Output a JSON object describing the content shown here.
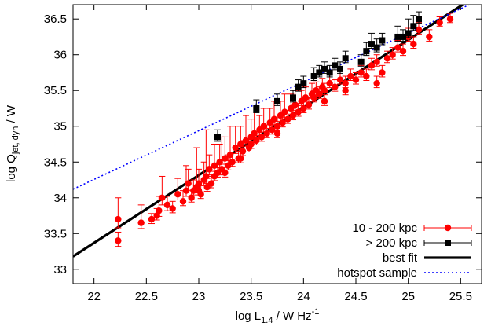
{
  "chart_data": {
    "type": "scatter",
    "xlabel": {
      "main": "log L",
      "sub": "1.4",
      "rest": " / W Hz",
      "sup": "-1"
    },
    "ylabel": {
      "main": "log Q",
      "sub": "jet, dyn",
      "rest": " / W"
    },
    "xlim": [
      21.8,
      25.7
    ],
    "ylim": [
      32.8,
      36.7
    ],
    "xticks": [
      22,
      22.5,
      23,
      23.5,
      24,
      24.5,
      25,
      25.5
    ],
    "xtick_labels": [
      "22",
      "22.5",
      "23",
      "23.5",
      "24",
      "24.5",
      "25",
      "25.5"
    ],
    "yticks": [
      33,
      33.5,
      34,
      34.5,
      35,
      35.5,
      36,
      36.5
    ],
    "ytick_labels": [
      "33",
      "33.5",
      "34",
      "34.5",
      "35",
      "35.5",
      "36",
      "36.5"
    ],
    "grid": false,
    "legend_position": "bottom-right",
    "colors": {
      "red": "#ff0000",
      "black": "#000000",
      "blue": "#0000ff"
    },
    "series": [
      {
        "name": "10 - 200 kpc",
        "marker": "circle",
        "color": "#ff0000",
        "points": [
          [
            22.23,
            33.7,
            0.3,
            0.12
          ],
          [
            22.23,
            33.4,
            0.12,
            0.08
          ],
          [
            22.45,
            33.65,
            0.25,
            0.08
          ],
          [
            22.55,
            33.7,
            0.08,
            0.06
          ],
          [
            22.62,
            33.82,
            0.2,
            0.08
          ],
          [
            22.65,
            34.0,
            0.3,
            0.1
          ],
          [
            22.7,
            33.9,
            0.12,
            0.08
          ],
          [
            22.75,
            33.85,
            0.1,
            0.06
          ],
          [
            22.8,
            34.05,
            0.22,
            0.08
          ],
          [
            22.85,
            33.95,
            0.15,
            0.06
          ],
          [
            22.88,
            34.1,
            0.35,
            0.08
          ],
          [
            22.9,
            34.2,
            0.2,
            0.08
          ],
          [
            22.93,
            34.0,
            0.1,
            0.06
          ],
          [
            22.95,
            34.1,
            0.15,
            0.06
          ],
          [
            22.98,
            34.15,
            0.55,
            0.08
          ],
          [
            23.0,
            34.2,
            0.2,
            0.08
          ],
          [
            23.02,
            34.05,
            0.12,
            0.06
          ],
          [
            23.05,
            34.25,
            0.25,
            0.08
          ],
          [
            23.07,
            34.3,
            0.65,
            0.1
          ],
          [
            23.08,
            34.15,
            0.12,
            0.06
          ],
          [
            23.1,
            34.4,
            0.2,
            0.08
          ],
          [
            23.12,
            34.2,
            0.1,
            0.06
          ],
          [
            23.15,
            34.45,
            0.3,
            0.08
          ],
          [
            23.15,
            34.3,
            0.15,
            0.06
          ],
          [
            23.18,
            34.35,
            0.12,
            0.06
          ],
          [
            23.2,
            34.5,
            0.25,
            0.08
          ],
          [
            23.22,
            34.4,
            0.45,
            0.08
          ],
          [
            23.25,
            34.55,
            0.3,
            0.08
          ],
          [
            23.25,
            34.35,
            0.12,
            0.06
          ],
          [
            23.28,
            34.45,
            0.15,
            0.06
          ],
          [
            23.3,
            34.6,
            0.4,
            0.08
          ],
          [
            23.32,
            34.5,
            0.12,
            0.06
          ],
          [
            23.35,
            34.7,
            0.3,
            0.08
          ],
          [
            23.38,
            34.55,
            0.1,
            0.06
          ],
          [
            23.4,
            34.75,
            0.25,
            0.08
          ],
          [
            23.42,
            34.65,
            0.15,
            0.06
          ],
          [
            23.45,
            34.8,
            0.35,
            0.08
          ],
          [
            23.48,
            34.7,
            0.12,
            0.06
          ],
          [
            23.5,
            34.85,
            0.25,
            0.08
          ],
          [
            23.5,
            34.75,
            0.1,
            0.06
          ],
          [
            23.53,
            34.9,
            0.3,
            0.08
          ],
          [
            23.55,
            34.8,
            0.12,
            0.06
          ],
          [
            23.58,
            34.95,
            0.2,
            0.08
          ],
          [
            23.6,
            34.85,
            0.15,
            0.06
          ],
          [
            23.62,
            35.0,
            0.25,
            0.08
          ],
          [
            23.65,
            34.9,
            0.12,
            0.06
          ],
          [
            23.68,
            35.05,
            0.2,
            0.08
          ],
          [
            23.7,
            34.95,
            0.1,
            0.06
          ],
          [
            23.72,
            35.1,
            0.25,
            0.08
          ],
          [
            23.75,
            35.0,
            0.12,
            0.06
          ],
          [
            23.78,
            35.15,
            0.2,
            0.08
          ],
          [
            23.8,
            35.05,
            0.15,
            0.06
          ],
          [
            23.82,
            35.2,
            0.25,
            0.08
          ],
          [
            23.85,
            35.1,
            0.12,
            0.06
          ],
          [
            23.88,
            35.25,
            0.2,
            0.08
          ],
          [
            23.9,
            35.15,
            0.1,
            0.06
          ],
          [
            23.92,
            35.3,
            0.2,
            0.08
          ],
          [
            23.95,
            35.2,
            0.12,
            0.06
          ],
          [
            23.98,
            35.35,
            0.15,
            0.06
          ],
          [
            24.0,
            35.25,
            0.1,
            0.06
          ],
          [
            24.02,
            35.4,
            0.15,
            0.06
          ],
          [
            24.05,
            35.3,
            0.1,
            0.06
          ],
          [
            24.08,
            35.45,
            0.15,
            0.06
          ],
          [
            24.1,
            35.4,
            0.1,
            0.06
          ],
          [
            24.12,
            35.5,
            0.12,
            0.06
          ],
          [
            24.15,
            35.45,
            0.1,
            0.06
          ],
          [
            24.18,
            35.55,
            0.12,
            0.06
          ],
          [
            24.2,
            35.5,
            0.1,
            0.06
          ],
          [
            24.25,
            35.6,
            0.12,
            0.06
          ],
          [
            24.3,
            35.55,
            0.1,
            0.06
          ],
          [
            24.35,
            35.65,
            0.12,
            0.06
          ],
          [
            24.4,
            35.6,
            0.1,
            0.06
          ],
          [
            24.45,
            35.7,
            0.1,
            0.06
          ],
          [
            24.5,
            35.65,
            0.1,
            0.06
          ],
          [
            24.55,
            35.75,
            0.1,
            0.06
          ],
          [
            24.6,
            35.7,
            0.1,
            0.06
          ],
          [
            24.65,
            35.85,
            0.1,
            0.06
          ],
          [
            24.7,
            35.9,
            0.1,
            0.06
          ],
          [
            24.75,
            35.75,
            0.1,
            0.06
          ],
          [
            24.8,
            35.95,
            0.1,
            0.06
          ],
          [
            24.85,
            36.0,
            0.1,
            0.06
          ],
          [
            24.9,
            36.1,
            0.1,
            0.06
          ],
          [
            24.95,
            36.05,
            0.1,
            0.06
          ],
          [
            25.0,
            36.25,
            0.12,
            0.06
          ],
          [
            25.05,
            36.15,
            0.1,
            0.06
          ],
          [
            25.1,
            36.35,
            0.1,
            0.06
          ],
          [
            25.2,
            36.25,
            0.1,
            0.06
          ],
          [
            25.3,
            36.45,
            0.08,
            0.05
          ],
          [
            25.4,
            36.5,
            0.08,
            0.05
          ],
          [
            23.75,
            34.9,
            0.1,
            0.06
          ],
          [
            23.4,
            34.55,
            0.1,
            0.06
          ],
          [
            23.0,
            34.1,
            0.1,
            0.06
          ],
          [
            22.6,
            33.75,
            0.1,
            0.06
          ],
          [
            24.2,
            35.35,
            0.12,
            0.06
          ],
          [
            24.4,
            35.5,
            0.12,
            0.06
          ],
          [
            24.7,
            35.6,
            0.1,
            0.06
          ]
        ]
      },
      {
        "name": "> 200 kpc",
        "marker": "square",
        "color": "#000000",
        "points": [
          [
            23.18,
            34.85,
            0.1,
            0.06
          ],
          [
            23.55,
            35.25,
            0.12,
            0.06
          ],
          [
            23.75,
            35.35,
            0.1,
            0.06
          ],
          [
            23.9,
            35.4,
            0.1,
            0.06
          ],
          [
            23.95,
            35.55,
            0.1,
            0.06
          ],
          [
            24.0,
            35.6,
            0.1,
            0.06
          ],
          [
            24.1,
            35.7,
            0.12,
            0.06
          ],
          [
            24.15,
            35.75,
            0.1,
            0.06
          ],
          [
            24.2,
            35.8,
            0.1,
            0.06
          ],
          [
            24.25,
            35.75,
            0.1,
            0.06
          ],
          [
            24.3,
            35.85,
            0.1,
            0.06
          ],
          [
            24.35,
            35.8,
            0.1,
            0.06
          ],
          [
            24.4,
            35.95,
            0.1,
            0.06
          ],
          [
            24.55,
            35.9,
            0.1,
            0.06
          ],
          [
            24.6,
            36.05,
            0.12,
            0.06
          ],
          [
            24.65,
            36.15,
            0.15,
            0.06
          ],
          [
            24.7,
            36.1,
            0.12,
            0.06
          ],
          [
            24.75,
            36.2,
            0.1,
            0.06
          ],
          [
            24.9,
            36.25,
            0.15,
            0.06
          ],
          [
            25.0,
            36.3,
            0.2,
            0.06
          ],
          [
            25.05,
            36.4,
            0.15,
            0.06
          ],
          [
            25.1,
            36.5,
            0.1,
            0.06
          ],
          [
            24.95,
            36.25,
            0.1,
            0.06
          ]
        ]
      }
    ],
    "lines": [
      {
        "name": "best fit",
        "style": "solid",
        "color": "#000000",
        "x": [
          21.8,
          25.52
        ],
        "y": [
          33.18,
          36.7
        ]
      },
      {
        "name": "hotspot sample",
        "style": "dotted",
        "color": "#0000ff",
        "x": [
          21.8,
          25.7
        ],
        "y": [
          34.12,
          36.78
        ]
      }
    ]
  }
}
